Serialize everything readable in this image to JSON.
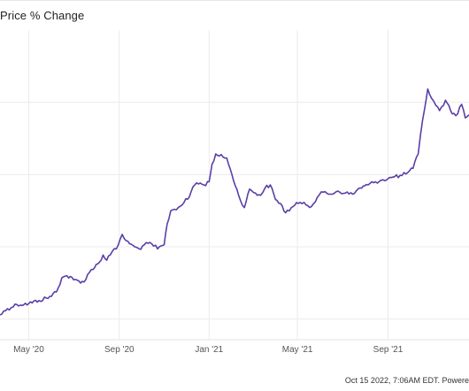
{
  "header": {
    "title": "Price % Change"
  },
  "footer": {
    "text": "Oct 15 2022, 7:06AM EDT. Powere"
  },
  "chart_data": {
    "type": "line",
    "title": "Price % Change",
    "xlabel": "",
    "ylabel": "",
    "x_tick_labels": [
      "May '20",
      "Sep '20",
      "Jan '21",
      "May '21",
      "Sep '21"
    ],
    "x_tick_dates": [
      "2020-05-01",
      "2020-09-01",
      "2021-01-01",
      "2021-05-01",
      "2021-09-01"
    ],
    "xlim": [
      "2020-03-23",
      "2021-12-20"
    ],
    "grid": true,
    "line_color": "#5b3fa6",
    "series": [
      {
        "values": [
          [
            "2020-03-23",
            4
          ],
          [
            "2020-04-02",
            10
          ],
          [
            "2020-04-15",
            14
          ],
          [
            "2020-05-01",
            15
          ],
          [
            "2020-05-15",
            18
          ],
          [
            "2020-06-01",
            22
          ],
          [
            "2020-06-10",
            30
          ],
          [
            "2020-06-15",
            40
          ],
          [
            "2020-06-22",
            42
          ],
          [
            "2020-07-01",
            38
          ],
          [
            "2020-07-15",
            36
          ],
          [
            "2020-07-25",
            48
          ],
          [
            "2020-08-05",
            55
          ],
          [
            "2020-08-10",
            62
          ],
          [
            "2020-08-15",
            57
          ],
          [
            "2020-08-22",
            65
          ],
          [
            "2020-08-28",
            68
          ],
          [
            "2020-09-05",
            82
          ],
          [
            "2020-09-10",
            76
          ],
          [
            "2020-09-15",
            73
          ],
          [
            "2020-09-22",
            70
          ],
          [
            "2020-09-28",
            68
          ],
          [
            "2020-10-05",
            72
          ],
          [
            "2020-10-15",
            73
          ],
          [
            "2020-10-23",
            68
          ],
          [
            "2020-11-01",
            72
          ],
          [
            "2020-11-05",
            92
          ],
          [
            "2020-11-10",
            105
          ],
          [
            "2020-11-20",
            108
          ],
          [
            "2020-11-28",
            113
          ],
          [
            "2020-12-05",
            118
          ],
          [
            "2020-12-10",
            128
          ],
          [
            "2020-12-15",
            132
          ],
          [
            "2020-12-25",
            130
          ],
          [
            "2021-01-01",
            133
          ],
          [
            "2021-01-05",
            150
          ],
          [
            "2021-01-10",
            160
          ],
          [
            "2021-01-15",
            158
          ],
          [
            "2021-01-20",
            157
          ],
          [
            "2021-01-25",
            156
          ],
          [
            "2021-02-01",
            140
          ],
          [
            "2021-02-10",
            120
          ],
          [
            "2021-02-18",
            108
          ],
          [
            "2021-02-25",
            126
          ],
          [
            "2021-03-05",
            122
          ],
          [
            "2021-03-12",
            120
          ],
          [
            "2021-03-18",
            127
          ],
          [
            "2021-03-25",
            130
          ],
          [
            "2021-04-01",
            116
          ],
          [
            "2021-04-08",
            112
          ],
          [
            "2021-04-15",
            103
          ],
          [
            "2021-04-25",
            109
          ],
          [
            "2021-05-02",
            112
          ],
          [
            "2021-05-10",
            113
          ],
          [
            "2021-05-20",
            109
          ],
          [
            "2021-05-28",
            118
          ],
          [
            "2021-06-05",
            123
          ],
          [
            "2021-06-15",
            121
          ],
          [
            "2021-06-25",
            124
          ],
          [
            "2021-07-05",
            122
          ],
          [
            "2021-07-15",
            121
          ],
          [
            "2021-07-25",
            127
          ],
          [
            "2021-08-05",
            130
          ],
          [
            "2021-08-15",
            133
          ],
          [
            "2021-08-25",
            135
          ],
          [
            "2021-09-01",
            136
          ],
          [
            "2021-09-10",
            138
          ],
          [
            "2021-09-20",
            139
          ],
          [
            "2021-09-28",
            142
          ],
          [
            "2021-10-05",
            146
          ],
          [
            "2021-10-12",
            160
          ],
          [
            "2021-10-18",
            193
          ],
          [
            "2021-10-25",
            223
          ],
          [
            "2021-10-30",
            214
          ],
          [
            "2021-11-05",
            207
          ],
          [
            "2021-11-10",
            202
          ],
          [
            "2021-11-18",
            212
          ],
          [
            "2021-11-25",
            202
          ],
          [
            "2021-12-02",
            197
          ],
          [
            "2021-12-10",
            208
          ],
          [
            "2021-12-15",
            195
          ],
          [
            "2021-12-20",
            198
          ]
        ]
      }
    ]
  }
}
